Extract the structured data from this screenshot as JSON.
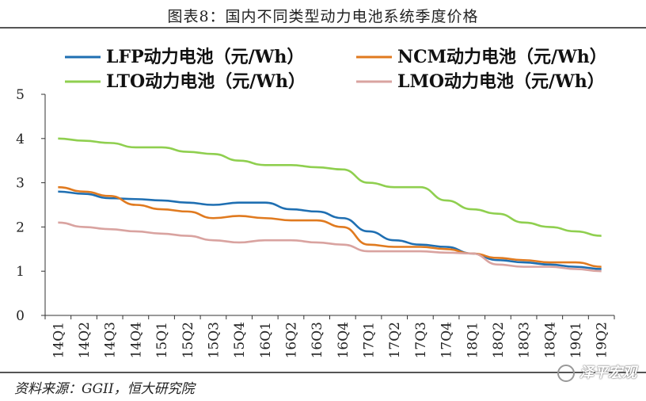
{
  "title": "图表8：国内不同类型动力电池系统季度价格",
  "source": "资料来源：GGII，恒大研究院",
  "brand": "泽平宏观",
  "chart_data": {
    "type": "line",
    "categories": [
      "14Q1",
      "14Q2",
      "14Q3",
      "14Q4",
      "15Q1",
      "15Q2",
      "15Q3",
      "15Q4",
      "16Q1",
      "16Q2",
      "16Q3",
      "16Q4",
      "17Q1",
      "17Q2",
      "17Q3",
      "17Q4",
      "18Q1",
      "18Q2",
      "18Q3",
      "18Q4",
      "19Q1",
      "19Q2"
    ],
    "ylim": [
      0,
      5
    ],
    "yticks": [
      0,
      1,
      2,
      3,
      4,
      5
    ],
    "legend_position": "top",
    "series": [
      {
        "name": "LFP动力电池（元/Wh）",
        "color": "#1f6fb2",
        "values": [
          2.8,
          2.75,
          2.65,
          2.63,
          2.6,
          2.55,
          2.5,
          2.55,
          2.55,
          2.4,
          2.35,
          2.2,
          1.9,
          1.7,
          1.6,
          1.55,
          1.4,
          1.25,
          1.2,
          1.15,
          1.1,
          1.05
        ]
      },
      {
        "name": "NCM动力电池（元/Wh）",
        "color": "#e07a1f",
        "values": [
          2.9,
          2.8,
          2.7,
          2.5,
          2.4,
          2.35,
          2.2,
          2.25,
          2.2,
          2.15,
          2.15,
          2.0,
          1.6,
          1.55,
          1.55,
          1.5,
          1.4,
          1.3,
          1.25,
          1.2,
          1.2,
          1.1
        ]
      },
      {
        "name": "LTO动力电池（元/Wh）",
        "color": "#8fcf4f",
        "values": [
          4.0,
          3.95,
          3.9,
          3.8,
          3.8,
          3.7,
          3.65,
          3.5,
          3.4,
          3.4,
          3.35,
          3.3,
          3.0,
          2.9,
          2.9,
          2.6,
          2.4,
          2.3,
          2.1,
          2.0,
          1.9,
          1.8
        ]
      },
      {
        "name": "LMO动力电池（元/Wh）",
        "color": "#d9a3a0",
        "values": [
          2.1,
          2.0,
          1.95,
          1.9,
          1.85,
          1.8,
          1.7,
          1.65,
          1.7,
          1.7,
          1.65,
          1.6,
          1.45,
          1.45,
          1.45,
          1.42,
          1.4,
          1.15,
          1.1,
          1.1,
          1.05,
          1.0
        ]
      }
    ]
  }
}
